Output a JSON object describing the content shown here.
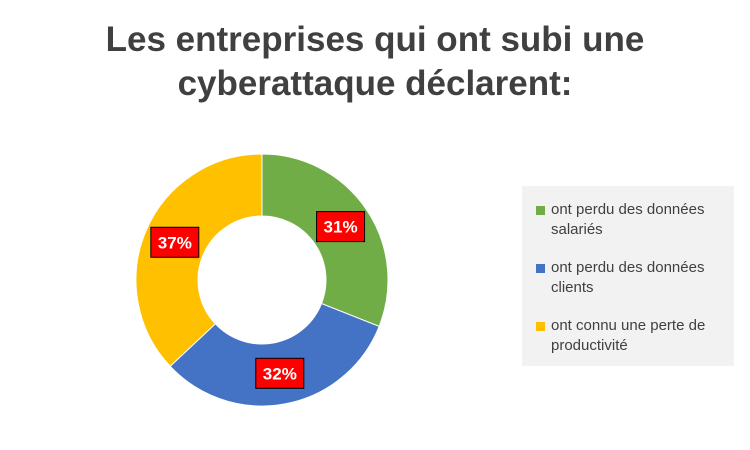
{
  "title_lines": [
    "Les entreprises qui ont subi une",
    "cyberattaque déclarent:"
  ],
  "chart_data": {
    "type": "pie",
    "variant": "donut",
    "title": "Les entreprises qui ont subi une cyberattaque déclarent:",
    "series": [
      {
        "name": "ont perdu des données salariés",
        "value": 31,
        "label": "31%",
        "color": "#70ad47"
      },
      {
        "name": "ont perdu des données clients",
        "value": 32,
        "label": "32%",
        "color": "#4472c4"
      },
      {
        "name": "ont connu une perte de productivité",
        "value": 37,
        "label": "37%",
        "color": "#ffc000"
      }
    ],
    "legend": {
      "position": "right",
      "items": [
        {
          "line1": "ont perdu des données",
          "line2": "salariés",
          "color": "#70ad47"
        },
        {
          "line1": "ont perdu des données",
          "line2": "clients",
          "color": "#4472c4"
        },
        {
          "line1": "ont connu une perte de",
          "line2": "productivité",
          "color": "#ffc000"
        }
      ]
    },
    "data_label_style": {
      "background": "#ff0000",
      "text_color": "#ffffff"
    }
  }
}
